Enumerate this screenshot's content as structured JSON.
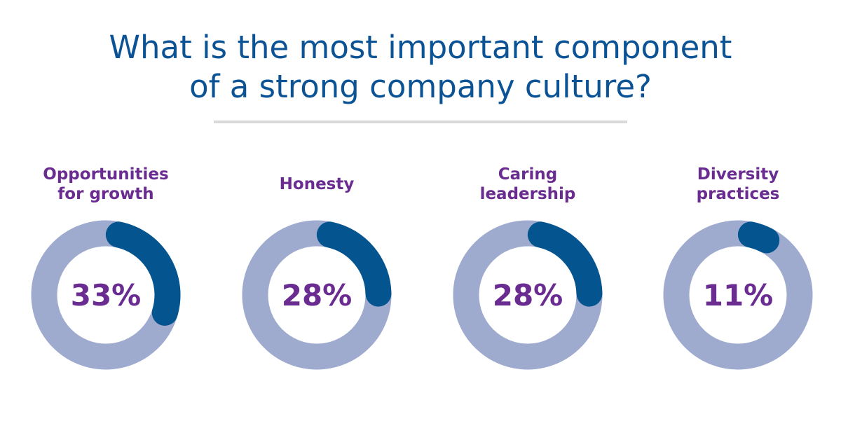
{
  "title_line1": "What is the most important component",
  "title_line2": "of a strong company culture?",
  "colors": {
    "title": "#0b5394",
    "label": "#6a2c91",
    "track": "#9eabcf",
    "arc": "#03548f"
  },
  "chart_data": {
    "type": "donut",
    "title": "What is the most important component of a strong company culture?",
    "categories": [
      "Opportunities for growth",
      "Honesty",
      "Caring leadership",
      "Diversity practices"
    ],
    "values": [
      33,
      28,
      28,
      11
    ],
    "labels": [
      "Opportunities\nfor growth",
      "Honesty",
      "Caring\nleadership",
      "Diversity\npractices"
    ],
    "value_labels": [
      "33%",
      "28%",
      "28%",
      "11%"
    ]
  }
}
